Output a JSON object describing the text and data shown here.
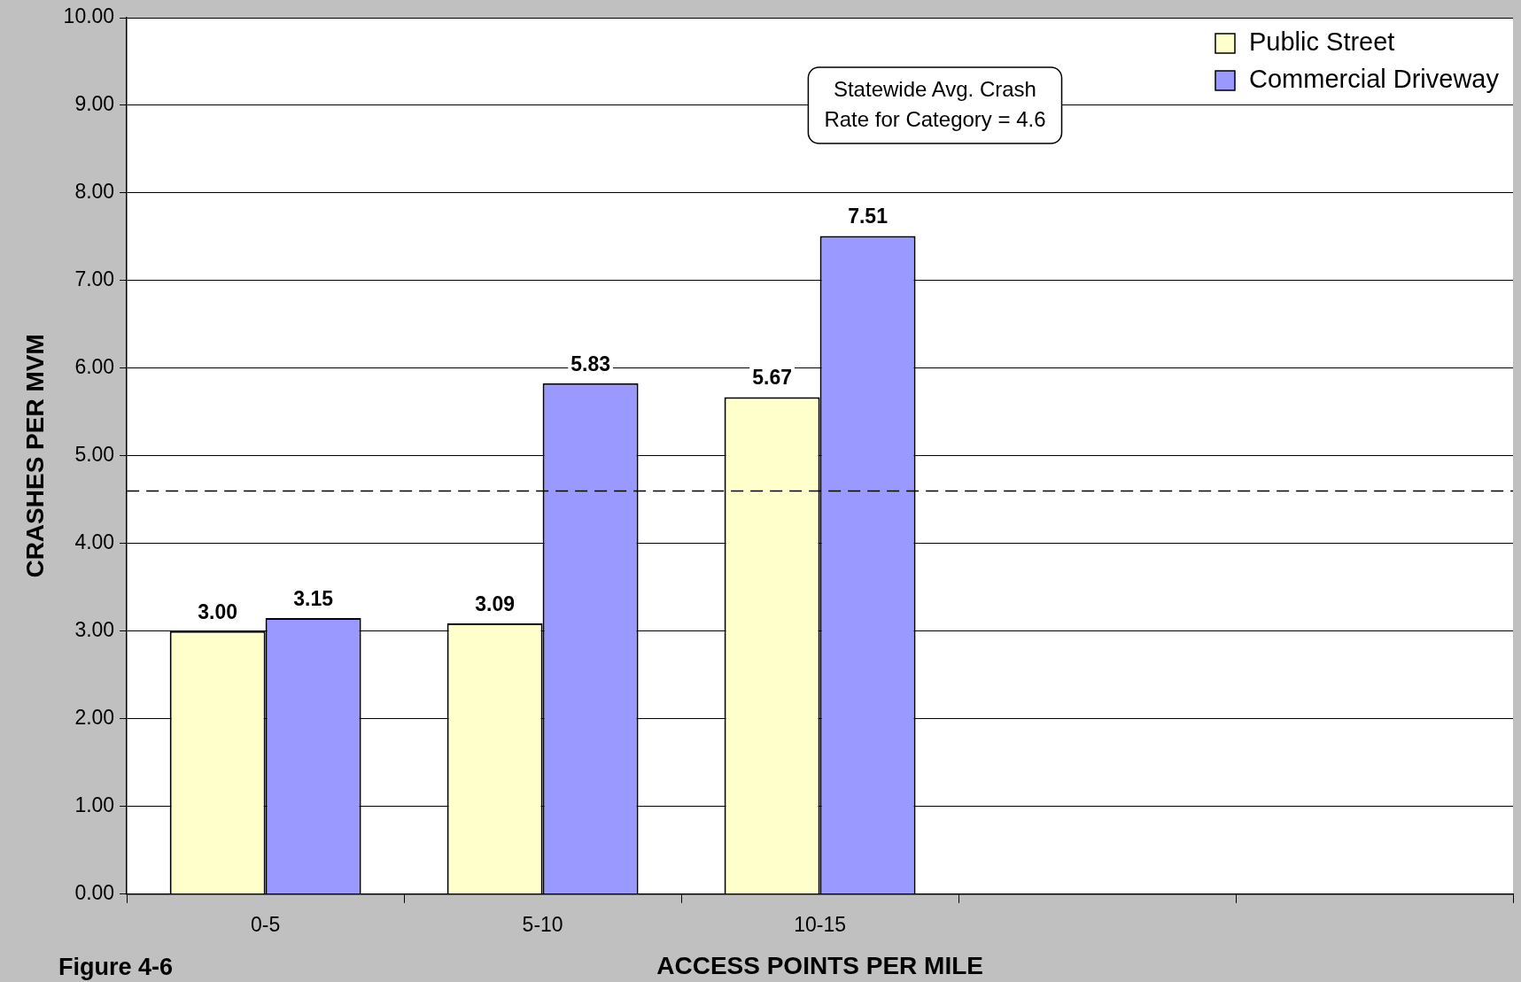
{
  "chart_data": {
    "type": "bar",
    "xlabel": "ACCESS POINTS PER MILE",
    "ylabel": "CRASHES PER MVM",
    "categories": [
      "0-5",
      "5-10",
      "10-15",
      null,
      null
    ],
    "series": [
      {
        "name": "Public Street",
        "color": "#ffffcc",
        "values": [
          3.0,
          3.09,
          5.67,
          null,
          null
        ],
        "value_labels": [
          "3.00",
          "3.09",
          "5.67",
          null,
          null
        ]
      },
      {
        "name": "Commercial Driveway",
        "color": "#9999ff",
        "values": [
          3.15,
          5.83,
          7.51,
          null,
          null
        ],
        "value_labels": [
          "3.15",
          "5.83",
          "7.51",
          null,
          null
        ]
      }
    ],
    "ylim": [
      0,
      10
    ],
    "yticks": [
      {
        "value": 0,
        "label": "0.00"
      },
      {
        "value": 1,
        "label": "1.00"
      },
      {
        "value": 2,
        "label": "2.00"
      },
      {
        "value": 3,
        "label": "3.00"
      },
      {
        "value": 4,
        "label": "4.00"
      },
      {
        "value": 5,
        "label": "5.00"
      },
      {
        "value": 6,
        "label": "6.00"
      },
      {
        "value": 7,
        "label": "7.00"
      },
      {
        "value": 8,
        "label": "8.00"
      },
      {
        "value": 9,
        "label": "9.00"
      },
      {
        "value": 10,
        "label": "10.00"
      }
    ],
    "ref_lines": [
      {
        "axis": "y",
        "value": 4.6,
        "color": "#000000",
        "line_style": "dashed"
      }
    ],
    "annotations": [
      "Statewide Avg. Crash Rate for Category = 4.6",
      "Figure 4-6"
    ],
    "grid": "y",
    "legend": "top right"
  }
}
